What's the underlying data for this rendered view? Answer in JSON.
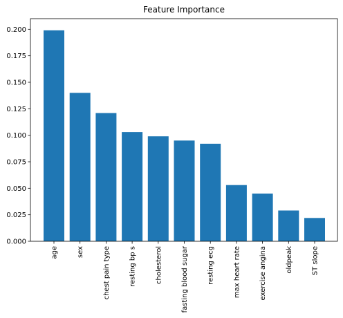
{
  "chart_data": {
    "type": "bar",
    "title": "Feature Importance",
    "xlabel": "",
    "ylabel": "",
    "categories": [
      "age",
      "sex",
      "chest pain type",
      "resting bp s",
      "cholesterol",
      "fasting blood sugar",
      "resting ecg",
      "max heart rate",
      "exercise angina",
      "oldpeak",
      "ST slope"
    ],
    "values": [
      0.199,
      0.14,
      0.121,
      0.103,
      0.099,
      0.095,
      0.092,
      0.053,
      0.045,
      0.029,
      0.022
    ],
    "yticks": [
      "0.000",
      "0.025",
      "0.050",
      "0.075",
      "0.100",
      "0.125",
      "0.150",
      "0.175",
      "0.200"
    ],
    "ylim": [
      0,
      0.21
    ],
    "grid": false,
    "bar_color": "#1f77b4"
  }
}
